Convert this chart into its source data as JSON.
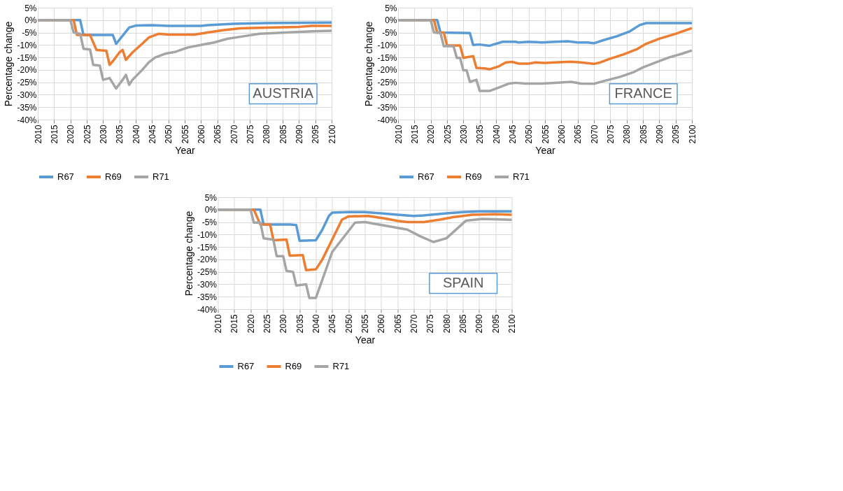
{
  "chart_data": [
    {
      "type": "line",
      "annotations": [
        "AUSTRIA"
      ],
      "xlabel": "Year",
      "ylabel": "Percentage change",
      "xlim": [
        2010,
        2100
      ],
      "xticks": [
        2010,
        2015,
        2020,
        2025,
        2030,
        2035,
        2040,
        2045,
        2050,
        2055,
        2060,
        2065,
        2070,
        2075,
        2080,
        2085,
        2090,
        2095,
        2100
      ],
      "ylim": [
        -40,
        5
      ],
      "yticks": [
        {
          "value": 5,
          "label": "5%"
        },
        {
          "value": 0,
          "label": "0%"
        },
        {
          "value": -5,
          "label": "-5%"
        },
        {
          "value": -10,
          "label": "-10%"
        },
        {
          "value": -15,
          "label": "-15%"
        },
        {
          "value": -20,
          "label": "-20%"
        },
        {
          "value": -25,
          "label": "-25%"
        },
        {
          "value": -30,
          "label": "-30%"
        },
        {
          "value": -35,
          "label": "-35%"
        },
        {
          "value": -40,
          "label": "-40%"
        }
      ],
      "grid": true,
      "legend": "bottom",
      "line_style": "solid",
      "marker": "none",
      "series": [
        {
          "name": "R67",
          "color": "#5b9bd5",
          "x": [
            2010,
            2023,
            2024,
            2033,
            2034,
            2038,
            2040,
            2045,
            2050,
            2060,
            2062,
            2070,
            2080,
            2100
          ],
          "values": [
            0,
            0,
            -6,
            -6,
            -9.5,
            -3,
            -2.2,
            -2,
            -2.3,
            -2.3,
            -2,
            -1.5,
            -1.2,
            -1
          ]
        },
        {
          "name": "R69",
          "color": "#ed7d31",
          "x": [
            2010,
            2021,
            2022,
            2026,
            2028,
            2031,
            2032,
            2033,
            2035,
            2036,
            2037,
            2039,
            2042,
            2044,
            2047,
            2050,
            2058,
            2062,
            2067,
            2072,
            2080,
            2090,
            2094,
            2100
          ],
          "values": [
            0,
            0,
            -6,
            -6,
            -12,
            -12.3,
            -18,
            -16.5,
            -13,
            -12,
            -16,
            -13,
            -9.5,
            -7,
            -5.5,
            -5.8,
            -5.8,
            -5,
            -4,
            -3.3,
            -3,
            -2.7,
            -2.3,
            -2.3
          ]
        },
        {
          "name": "R71",
          "color": "#a5a5a5",
          "x": [
            2010,
            2020,
            2021,
            2023,
            2024,
            2026,
            2027,
            2029,
            2030,
            2032,
            2034,
            2036,
            2037,
            2038,
            2039,
            2042,
            2044,
            2046,
            2049,
            2052,
            2056,
            2060,
            2064,
            2068,
            2073,
            2078,
            2086,
            2094,
            2100
          ],
          "values": [
            0,
            0,
            -5,
            -5.5,
            -11.5,
            -11.8,
            -18,
            -18.3,
            -24,
            -23.3,
            -27.5,
            -24,
            -22,
            -26,
            -24,
            -20,
            -17,
            -15,
            -13.5,
            -12.8,
            -11,
            -10,
            -9,
            -7.5,
            -6.5,
            -5.5,
            -5,
            -4.5,
            -4.3
          ]
        }
      ]
    },
    {
      "type": "line",
      "annotations": [
        "FRANCE"
      ],
      "xlabel": "Year",
      "ylabel": "Percentage change",
      "xlim": [
        2010,
        2100
      ],
      "xticks": [
        2010,
        2015,
        2020,
        2025,
        2030,
        2035,
        2040,
        2045,
        2050,
        2055,
        2060,
        2065,
        2070,
        2075,
        2080,
        2085,
        2090,
        2095,
        2100
      ],
      "ylim": [
        -40,
        5
      ],
      "yticks": [
        {
          "value": 5,
          "label": "5%"
        },
        {
          "value": 0,
          "label": "0%"
        },
        {
          "value": -5,
          "label": "-5%"
        },
        {
          "value": -10,
          "label": "-10%"
        },
        {
          "value": -15,
          "label": "-15%"
        },
        {
          "value": -20,
          "label": "-20%"
        },
        {
          "value": -25,
          "label": "-25%"
        },
        {
          "value": -30,
          "label": "-30%"
        },
        {
          "value": -35,
          "label": "-35%"
        },
        {
          "value": -40,
          "label": "-40%"
        }
      ],
      "grid": true,
      "legend": "bottom",
      "line_style": "solid",
      "marker": "none",
      "series": [
        {
          "name": "R67",
          "color": "#5b9bd5",
          "x": [
            2010,
            2022,
            2023,
            2032,
            2033,
            2035,
            2038,
            2040,
            2042,
            2046,
            2047,
            2050,
            2054,
            2058,
            2062,
            2065,
            2068,
            2070,
            2073,
            2077,
            2081,
            2084,
            2086,
            2100
          ],
          "values": [
            0,
            0,
            -5,
            -5.2,
            -10,
            -9.8,
            -10.3,
            -9.5,
            -8.7,
            -8.7,
            -9,
            -8.7,
            -9,
            -8.7,
            -8.5,
            -9,
            -9,
            -9.3,
            -8,
            -6.5,
            -4.5,
            -2,
            -1.2,
            -1.2
          ]
        },
        {
          "name": "R69",
          "color": "#ed7d31",
          "x": [
            2010,
            2021,
            2022,
            2024,
            2025,
            2029,
            2030,
            2033,
            2034,
            2037,
            2038,
            2041,
            2043,
            2045,
            2047,
            2050,
            2052,
            2055,
            2058,
            2063,
            2066,
            2070,
            2072,
            2075,
            2079,
            2083,
            2086,
            2090,
            2095,
            2100
          ],
          "values": [
            0,
            0,
            -5,
            -5,
            -10.2,
            -10.2,
            -15.2,
            -14.5,
            -19.2,
            -19.5,
            -19.8,
            -18.5,
            -17,
            -16.8,
            -17.5,
            -17.5,
            -17,
            -17.2,
            -17,
            -16.7,
            -17,
            -17.6,
            -17,
            -15.5,
            -13.8,
            -11.8,
            -9.5,
            -7.5,
            -5.5,
            -3.2
          ]
        },
        {
          "name": "R71",
          "color": "#a5a5a5",
          "x": [
            2010,
            2020,
            2021,
            2023,
            2024,
            2027,
            2028,
            2029,
            2030,
            2031,
            2032,
            2034,
            2035,
            2038,
            2041,
            2044,
            2046,
            2049,
            2054,
            2058,
            2063,
            2066,
            2070,
            2073,
            2078,
            2082,
            2085,
            2089,
            2093,
            2097,
            2100
          ],
          "values": [
            0,
            0,
            -5,
            -5.2,
            -10.5,
            -10.5,
            -15.2,
            -15.2,
            -20.2,
            -20.2,
            -24.8,
            -24,
            -28.5,
            -28.5,
            -27,
            -25.5,
            -25.2,
            -25.5,
            -25.5,
            -25.2,
            -24.8,
            -25.5,
            -25.6,
            -24.5,
            -22.8,
            -21,
            -19,
            -17,
            -15,
            -13.5,
            -12.2
          ]
        }
      ]
    },
    {
      "type": "line",
      "annotations": [
        "SPAIN"
      ],
      "xlabel": "Year",
      "ylabel": "Percentage change",
      "xlim": [
        2010,
        2100
      ],
      "xticks": [
        2010,
        2015,
        2020,
        2025,
        2030,
        2035,
        2040,
        2045,
        2050,
        2055,
        2060,
        2065,
        2070,
        2075,
        2080,
        2085,
        2090,
        2095,
        2100
      ],
      "ylim": [
        -40,
        5
      ],
      "yticks": [
        {
          "value": 5,
          "label": "5%"
        },
        {
          "value": 0,
          "label": "0%"
        },
        {
          "value": -5,
          "label": "-5%"
        },
        {
          "value": -10,
          "label": "-10%"
        },
        {
          "value": -15,
          "label": "-15%"
        },
        {
          "value": -20,
          "label": "-20%"
        },
        {
          "value": -25,
          "label": "-25%"
        },
        {
          "value": -30,
          "label": "-30%"
        },
        {
          "value": -35,
          "label": "-35%"
        },
        {
          "value": -40,
          "label": "-40%"
        }
      ],
      "grid": true,
      "legend": "bottom",
      "line_style": "solid",
      "marker": "none",
      "series": [
        {
          "name": "R67",
          "color": "#5b9bd5",
          "x": [
            2010,
            2023,
            2024,
            2032,
            2034,
            2035,
            2040,
            2042,
            2044,
            2045,
            2050,
            2055,
            2060,
            2065,
            2070,
            2073,
            2080,
            2085,
            2090,
            2100
          ],
          "values": [
            0,
            0,
            -6,
            -6,
            -6.2,
            -12.5,
            -12.3,
            -8,
            -2.5,
            -1.2,
            -1,
            -1,
            -1.5,
            -2,
            -2.5,
            -2.3,
            -1.5,
            -1,
            -0.7,
            -0.7
          ]
        },
        {
          "name": "R69",
          "color": "#ed7d31",
          "x": [
            2010,
            2021,
            2023,
            2026,
            2027,
            2031,
            2032,
            2036,
            2037,
            2040,
            2042,
            2045,
            2048,
            2050,
            2056,
            2061,
            2065,
            2068,
            2073,
            2078,
            2082,
            2088,
            2095,
            2100
          ],
          "values": [
            0,
            0,
            -6,
            -6,
            -12.3,
            -12,
            -18.5,
            -18.3,
            -24.3,
            -24,
            -20,
            -12,
            -4,
            -2.7,
            -2.5,
            -3.5,
            -4.5,
            -5,
            -5,
            -4,
            -3,
            -2,
            -1.8,
            -2
          ]
        },
        {
          "name": "R71",
          "color": "#a5a5a5",
          "x": [
            2010,
            2020,
            2021,
            2023,
            2024,
            2027,
            2028,
            2030,
            2031,
            2033,
            2034,
            2037,
            2038,
            2040,
            2045,
            2052,
            2055,
            2062,
            2068,
            2072,
            2076,
            2080,
            2086,
            2091,
            2100
          ],
          "values": [
            0,
            0,
            -5.2,
            -5.2,
            -11.5,
            -12.1,
            -18.7,
            -18.7,
            -24.6,
            -25,
            -30.5,
            -30,
            -35.5,
            -35.5,
            -17,
            -5.2,
            -5,
            -6.6,
            -8,
            -10.7,
            -13,
            -11.5,
            -4.4,
            -3.7,
            -4.1
          ]
        }
      ]
    }
  ]
}
